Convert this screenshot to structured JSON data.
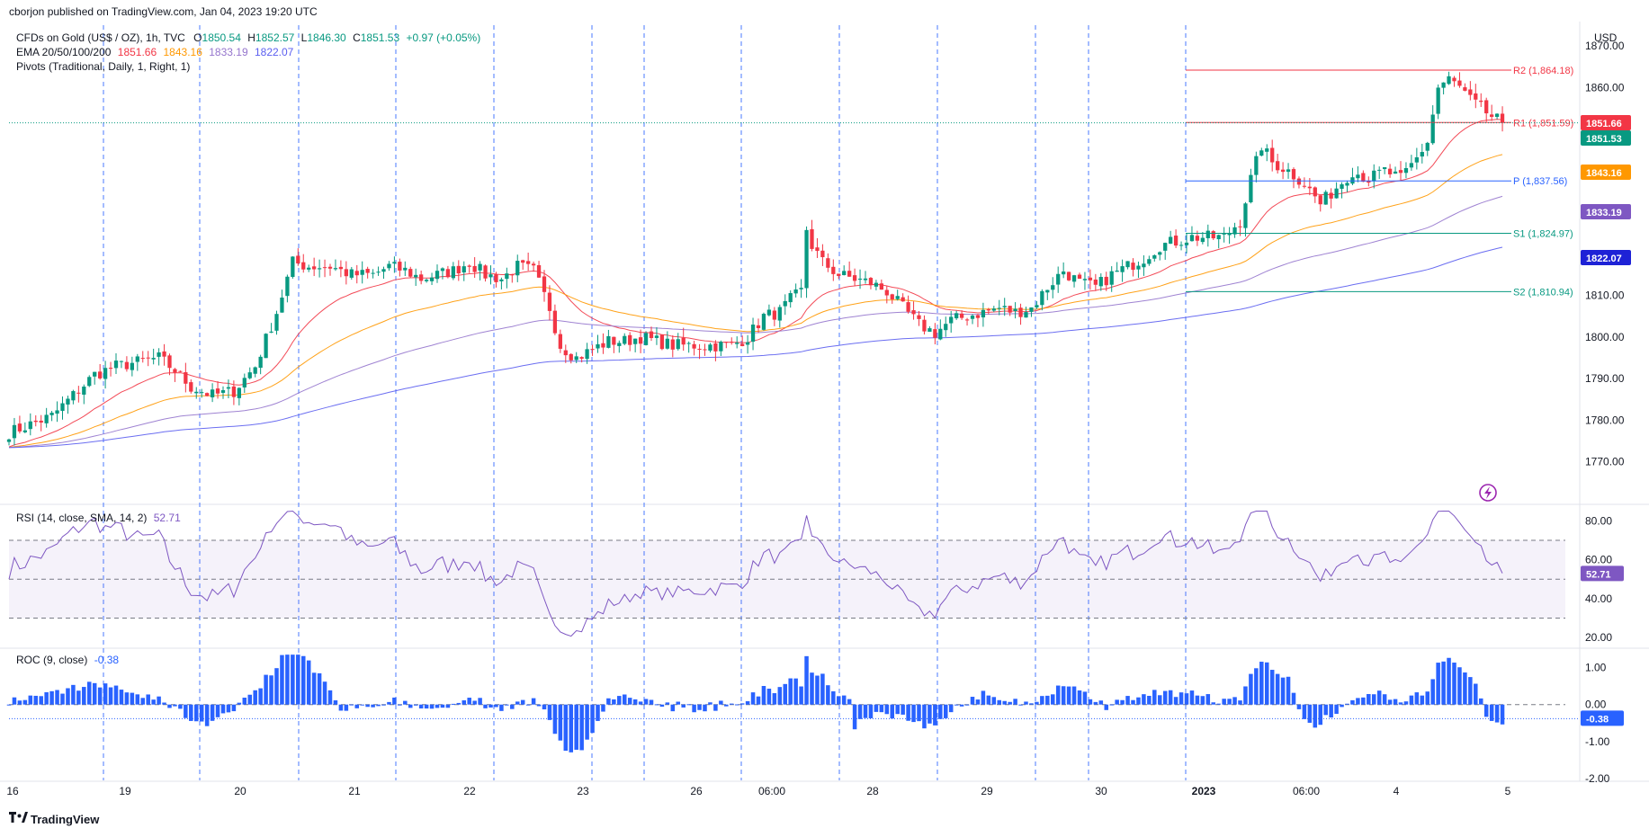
{
  "header": {
    "publisher": "cborjon published on TradingView.com, Jan 04, 2023 19:20 UTC",
    "currency": "USD",
    "logo_text": "TradingView"
  },
  "main": {
    "symbol_line": {
      "name": "CFDs on Gold (US$ / OZ), 1h, TVC",
      "o_label": "O",
      "o_value": "1850.54",
      "h_label": "H",
      "h_value": "1852.57",
      "l_label": "L",
      "l_value": "1846.30",
      "c_label": "C",
      "c_value": "1851.53",
      "change": "+0.97 (+0.05%)"
    },
    "ema_line": {
      "name": "EMA 20/50/100/200",
      "v20": "1851.66",
      "v50": "1843.16",
      "v100": "1833.19",
      "v200": "1822.07"
    },
    "pivots_line": "Pivots (Traditional, Daily, 1, Right, 1)"
  },
  "colors": {
    "up": "#089981",
    "down": "#f23645",
    "ema20": "#f23645",
    "ema50": "#ff9800",
    "ema100": "#9575cd",
    "ema200": "#5b5ef0",
    "rsi": "#7e57c2",
    "roc": "#2962ff",
    "session": "#2962ff"
  },
  "chart_data": [
    {
      "type": "candlestick",
      "title": "CFDs on Gold (US$ / OZ), 1h, TVC",
      "ylabel": "USD",
      "ylim": [
        1760,
        1875
      ],
      "y_ticks": [
        "1870.00",
        "1860.00",
        "1850.00",
        "1840.00",
        "1830.00",
        "1820.00",
        "1810.00",
        "1800.00",
        "1790.00",
        "1780.00",
        "1770.00"
      ],
      "x_tick_labels": [
        "16",
        "19",
        "20",
        "21",
        "22",
        "23",
        "26",
        "06:00",
        "28",
        "29",
        "30",
        "2023",
        "06:00",
        "4",
        "5"
      ],
      "price_path": [
        [
          0,
          1777
        ],
        [
          4,
          1779
        ],
        [
          8,
          1781
        ],
        [
          12,
          1786
        ],
        [
          16,
          1791
        ],
        [
          20,
          1793
        ],
        [
          24,
          1794
        ],
        [
          28,
          1795
        ],
        [
          31,
          1792
        ],
        [
          34,
          1788
        ],
        [
          38,
          1786
        ],
        [
          42,
          1787
        ],
        [
          46,
          1793
        ],
        [
          50,
          1806
        ],
        [
          53,
          1818
        ],
        [
          56,
          1817
        ],
        [
          60,
          1817
        ],
        [
          64,
          1815
        ],
        [
          68,
          1815
        ],
        [
          71,
          1817
        ],
        [
          74,
          1816
        ],
        [
          77,
          1814
        ],
        [
          80,
          1815
        ],
        [
          83,
          1816
        ],
        [
          86,
          1818
        ],
        [
          89,
          1815
        ],
        [
          92,
          1814
        ],
        [
          95,
          1817
        ],
        [
          98,
          1816
        ],
        [
          101,
          1807
        ],
        [
          103,
          1798
        ],
        [
          106,
          1795
        ],
        [
          109,
          1797
        ],
        [
          112,
          1799
        ],
        [
          115,
          1799
        ],
        [
          118,
          1800
        ],
        [
          121,
          1799
        ],
        [
          124,
          1798
        ],
        [
          128,
          1798
        ],
        [
          132,
          1798
        ],
        [
          135,
          1798
        ],
        [
          138,
          1800
        ],
        [
          141,
          1805
        ],
        [
          144,
          1806
        ],
        [
          146,
          1809
        ],
        [
          148,
          1811
        ],
        [
          149,
          1826
        ],
        [
          150,
          1822
        ],
        [
          152,
          1818
        ],
        [
          155,
          1815
        ],
        [
          158,
          1814
        ],
        [
          161,
          1813
        ],
        [
          164,
          1811
        ],
        [
          167,
          1807
        ],
        [
          170,
          1803
        ],
        [
          173,
          1801
        ],
        [
          176,
          1804
        ],
        [
          179,
          1805
        ],
        [
          182,
          1806
        ],
        [
          185,
          1807
        ],
        [
          188,
          1806
        ],
        [
          191,
          1807
        ],
        [
          194,
          1812
        ],
        [
          197,
          1816
        ],
        [
          200,
          1813
        ],
        [
          203,
          1812
        ],
        [
          206,
          1815
        ],
        [
          209,
          1817
        ],
        [
          212,
          1819
        ],
        [
          215,
          1822
        ],
        [
          218,
          1823
        ],
        [
          221,
          1824
        ],
        [
          224,
          1824
        ],
        [
          227,
          1824
        ],
        [
          230,
          1828
        ],
        [
          232,
          1838
        ],
        [
          234,
          1846
        ],
        [
          236,
          1842
        ],
        [
          239,
          1840
        ],
        [
          242,
          1837
        ],
        [
          245,
          1832
        ],
        [
          248,
          1836
        ],
        [
          251,
          1840
        ],
        [
          254,
          1838
        ],
        [
          257,
          1840
        ],
        [
          260,
          1838
        ],
        [
          263,
          1843
        ],
        [
          265,
          1847
        ],
        [
          267,
          1860
        ],
        [
          269,
          1862
        ],
        [
          271,
          1860
        ],
        [
          273,
          1857
        ],
        [
          275,
          1855
        ],
        [
          277,
          1853
        ],
        [
          279,
          1851.5
        ]
      ],
      "bars_total": 281,
      "ema": [
        {
          "period": 20,
          "value": "1851.66"
        },
        {
          "period": 50,
          "value": "1843.16"
        },
        {
          "period": 100,
          "value": "1833.19"
        },
        {
          "period": 200,
          "value": "1822.07"
        }
      ],
      "last_close": "1851.53",
      "pivots": [
        {
          "name": "R2",
          "label": "R2 (1,864.18)",
          "value": 1864.18
        },
        {
          "name": "R1",
          "label": "R1 (1,851.59)",
          "value": 1851.59
        },
        {
          "name": "P",
          "label": "P (1,837.56)",
          "value": 1837.56
        },
        {
          "name": "S1",
          "label": "S1 (1,824.97)",
          "value": 1824.97
        },
        {
          "name": "S2",
          "label": "S2 (1,810.94)",
          "value": 1810.94
        }
      ],
      "grid": false,
      "session_breaks": true
    },
    {
      "type": "line",
      "title": "RSI (14, close, SMA, 14, 2)",
      "last_value": "52.71",
      "ylim": [
        15,
        88
      ],
      "y_ticks": [
        "80.00",
        "60.00",
        "40.00",
        "20.00"
      ],
      "band": [
        30,
        70
      ],
      "midline": 50
    },
    {
      "type": "bar",
      "title": "ROC (9, close)",
      "last_value": "-0.38",
      "ylim": [
        -2.05,
        1.5
      ],
      "y_ticks": [
        "1.00",
        "0.00",
        "-1.00",
        "-2.00"
      ]
    }
  ]
}
